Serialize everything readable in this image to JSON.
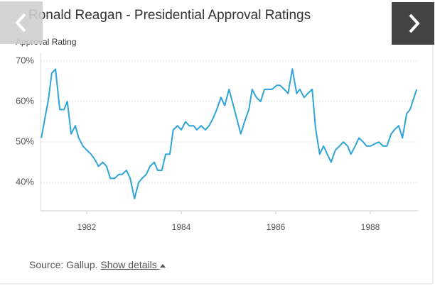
{
  "chart_data": {
    "type": "line",
    "title": "Ronald Reagan - Presidential Approval Ratings",
    "ylabel": "Approval Rating",
    "x": [
      1981.04,
      1981.11,
      1981.19,
      1981.26,
      1981.34,
      1981.43,
      1981.52,
      1981.59,
      1981.67,
      1981.76,
      1981.83,
      1981.92,
      1982.0,
      1982.09,
      1982.18,
      1982.25,
      1982.34,
      1982.42,
      1982.5,
      1982.59,
      1982.68,
      1982.75,
      1982.84,
      1982.92,
      1983.01,
      1983.1,
      1983.17,
      1983.26,
      1983.34,
      1983.43,
      1983.5,
      1983.59,
      1983.67,
      1983.76,
      1983.83,
      1983.92,
      1984.0,
      1984.09,
      1984.17,
      1984.26,
      1984.33,
      1984.42,
      1984.51,
      1984.59,
      1984.68,
      1984.75,
      1984.84,
      1984.92,
      1985.01,
      1985.08,
      1985.17,
      1985.26,
      1985.34,
      1985.43,
      1985.5,
      1985.59,
      1985.68,
      1985.76,
      1985.85,
      1985.92,
      1986.02,
      1986.09,
      1986.18,
      1986.26,
      1986.35,
      1986.44,
      1986.51,
      1986.6,
      1986.68,
      1986.77,
      1986.84,
      1986.93,
      1987.01,
      1987.09,
      1987.17,
      1987.26,
      1987.35,
      1987.43,
      1987.52,
      1987.59,
      1987.68,
      1987.76,
      1987.85,
      1987.92,
      1988.01,
      1988.09,
      1988.18,
      1988.27,
      1988.35,
      1988.44,
      1988.51,
      1988.6,
      1988.68,
      1988.77,
      1988.84,
      1988.98
    ],
    "series": [
      {
        "name": "Approval Rating",
        "color": "#2fa4d8",
        "values": [
          51,
          55.5,
          60.5,
          67,
          68,
          58,
          58,
          60,
          52,
          54,
          51,
          49,
          48,
          47,
          45.5,
          44,
          45,
          44,
          41,
          41,
          42,
          42,
          43,
          41,
          36,
          40,
          41,
          42,
          44,
          45,
          43,
          43,
          47,
          47,
          53,
          54,
          53,
          55,
          54,
          54,
          53,
          54,
          53,
          54,
          56,
          58,
          61,
          59,
          63,
          60,
          56,
          52,
          55,
          58,
          63,
          61,
          60,
          63,
          63,
          63,
          64,
          64,
          63,
          62,
          68,
          62,
          63,
          61,
          62,
          63,
          53.5,
          47,
          49,
          47,
          45,
          48,
          49,
          50,
          49,
          47,
          49,
          51,
          50,
          49,
          49,
          49.5,
          50,
          49,
          49,
          52,
          53,
          54,
          51,
          57,
          58,
          63
        ]
      }
    ],
    "xlim": [
      1981,
      1989
    ],
    "xticks": [
      1982,
      1984,
      1986,
      1988
    ],
    "ylim": [
      33,
      72
    ],
    "yticks": [
      {
        "value": 40,
        "label": "40%"
      },
      {
        "value": 50,
        "label": "50%"
      },
      {
        "value": 60,
        "label": "60%"
      },
      {
        "value": 70,
        "label": "70%"
      }
    ],
    "grid": true
  },
  "source": {
    "text": "Source: Gallup.",
    "link": "Show details"
  }
}
